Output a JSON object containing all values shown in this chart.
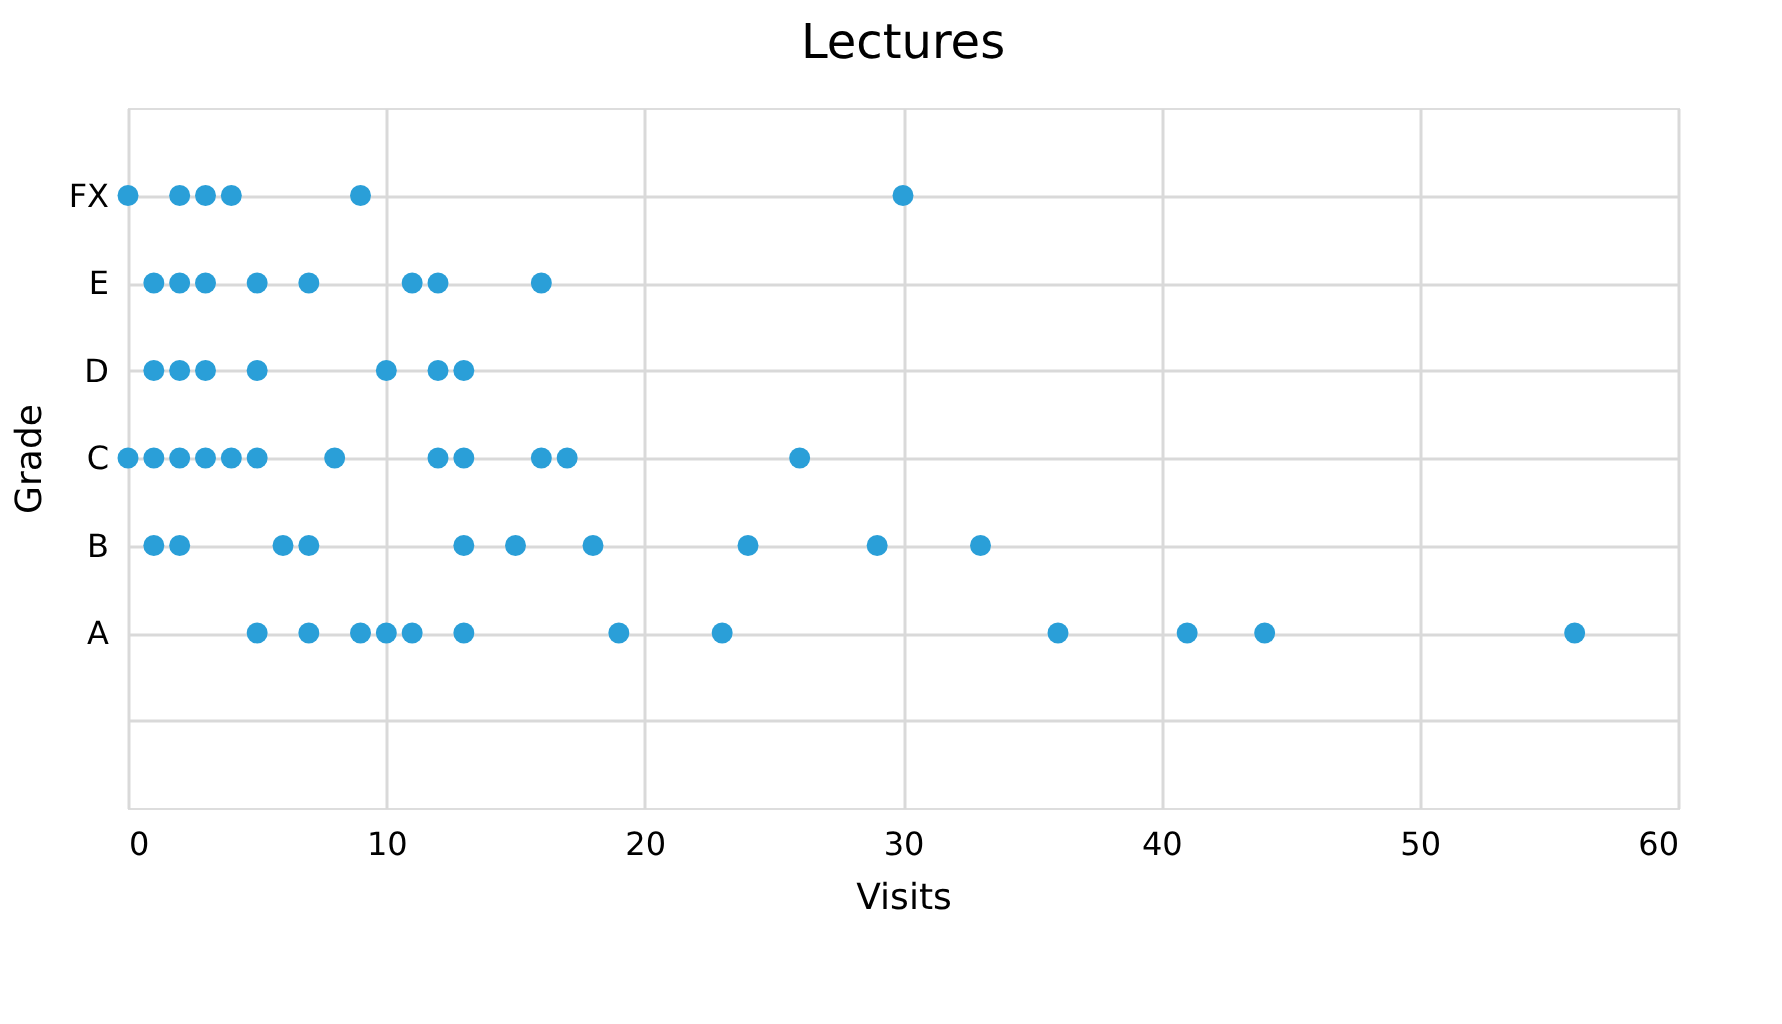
{
  "chart_data": {
    "type": "scatter",
    "orientation": "horizontal",
    "title": "Lectures",
    "xlabel": "Visits",
    "ylabel": "Grade",
    "categories": [
      "FX",
      "E",
      "D",
      "C",
      "B",
      "A",
      null
    ],
    "series": [
      {
        "color": "#2a9fd8",
        "x": [
          "FX",
          "FX",
          "FX",
          "FX",
          "FX",
          "FX",
          "E",
          "E",
          "E",
          "E",
          "E",
          "E",
          "E",
          "E",
          "D",
          "D",
          "D",
          "D",
          "D",
          "D",
          "D",
          "C",
          "C",
          "C",
          "C",
          "C",
          "C",
          "C",
          "C",
          "C",
          "C",
          "C",
          "C",
          "B",
          "B",
          "B",
          "B",
          "B",
          "B",
          "B",
          "B",
          "B",
          "B",
          "A",
          "A",
          "A",
          "A",
          "A",
          "A",
          "A",
          "A",
          "A",
          "A",
          "A",
          "A"
        ],
        "values": [
          0,
          2,
          3,
          4,
          9,
          30,
          1,
          2,
          3,
          5,
          7,
          11,
          12,
          16,
          1,
          2,
          3,
          5,
          10,
          12,
          13,
          0,
          1,
          2,
          3,
          4,
          5,
          8,
          12,
          13,
          16,
          17,
          26,
          1,
          2,
          6,
          7,
          13,
          15,
          18,
          24,
          29,
          33,
          5,
          7,
          9,
          10,
          11,
          13,
          19,
          23,
          36,
          41,
          44,
          56
        ]
      }
    ],
    "marker": "circle",
    "grid": true,
    "xlim": [
      0,
      60
    ],
    "xticks": [
      0,
      10,
      20,
      30,
      40,
      50,
      60
    ]
  }
}
